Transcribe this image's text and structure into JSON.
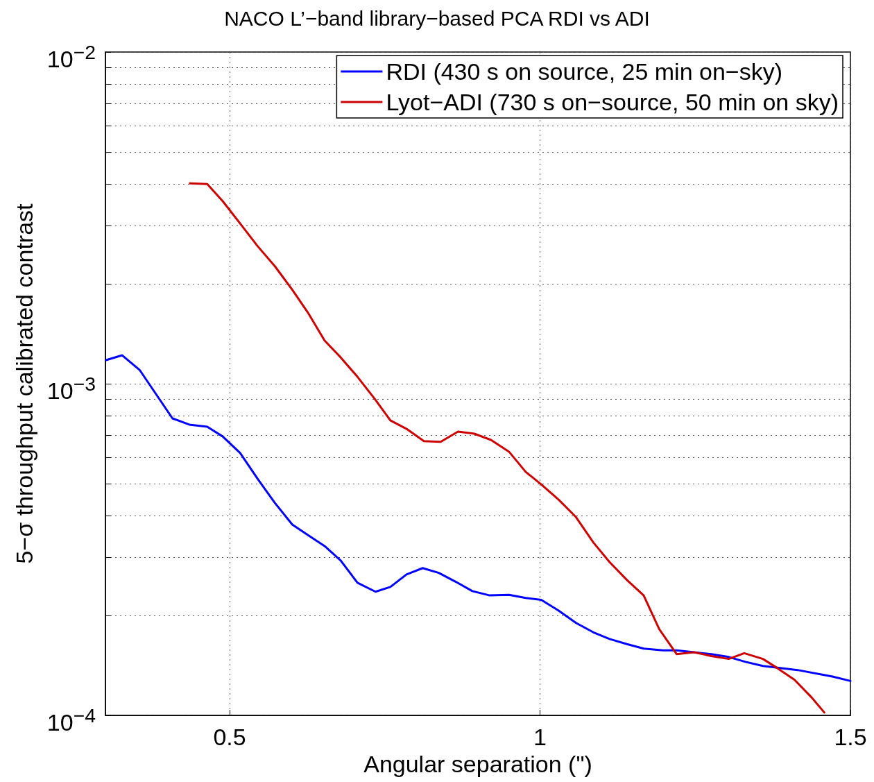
{
  "chart_data": {
    "type": "line",
    "title": "NACO L’−band library−based PCA RDI vs ADI",
    "xlabel": "Angular separation (\")",
    "ylabel": "5−σ throughput calibrated contrast",
    "log": "y",
    "grid": true,
    "legend": "top right",
    "marker": "none",
    "line_style": "solid",
    "xlim": [
      0.3,
      1.5
    ],
    "xticks": [
      0.5,
      1,
      1.5
    ],
    "ylim": [
      0.0001,
      0.01
    ],
    "yticks": [
      {
        "value": 0.0001,
        "label": "10$^{−4}$"
      },
      {
        "value": 0.0002,
        "label": null
      },
      {
        "value": 0.0003,
        "label": null
      },
      {
        "value": 0.0004,
        "label": null
      },
      {
        "value": 0.0005,
        "label": null
      },
      {
        "value": 0.0006,
        "label": null
      },
      {
        "value": 0.0007,
        "label": null
      },
      {
        "value": 0.0008,
        "label": null
      },
      {
        "value": 0.0009,
        "label": null
      },
      {
        "value": 0.001,
        "label": "10$^{−3}$"
      },
      {
        "value": 0.002,
        "label": null
      },
      {
        "value": 0.003,
        "label": null
      },
      {
        "value": 0.004,
        "label": null
      },
      {
        "value": 0.005,
        "label": null
      },
      {
        "value": 0.006,
        "label": null
      },
      {
        "value": 0.007,
        "label": null
      },
      {
        "value": 0.008,
        "label": null
      },
      {
        "value": 0.009,
        "label": null
      },
      {
        "value": 0.01,
        "label": "10$^{−2}$"
      }
    ],
    "series": [
      {
        "name": "RDI (430 s on source, 25 min on−sky)",
        "color": "#0000ff",
        "x": [
          0.301,
          0.327,
          0.355,
          0.408,
          0.435,
          0.464,
          0.489,
          0.517,
          0.545,
          0.573,
          0.601,
          0.626,
          0.653,
          0.679,
          0.706,
          0.735,
          0.759,
          0.785,
          0.811,
          0.837,
          0.864,
          0.891,
          0.919,
          0.95,
          0.977,
          1.002,
          1.03,
          1.058,
          1.086,
          1.112,
          1.14,
          1.167,
          1.198,
          1.22,
          1.248,
          1.276,
          1.304,
          1.331,
          1.359,
          1.415,
          1.471,
          1.5
        ],
        "values": [
          0.001178,
          0.001218,
          0.001101,
          0.000786,
          0.000753,
          0.000742,
          0.000693,
          0.000618,
          0.000517,
          0.000437,
          0.000376,
          0.00035,
          0.000324,
          0.000293,
          0.000251,
          0.000236,
          0.000244,
          0.000266,
          0.000278,
          0.000269,
          0.000253,
          0.000237,
          0.00023,
          0.000231,
          0.000226,
          0.000223,
          0.000207,
          0.00019,
          0.000178,
          0.00017,
          0.000164,
          0.000159,
          0.000157,
          0.000157,
          0.000155,
          0.000153,
          0.00015,
          0.000145,
          0.000141,
          0.000137,
          0.000131,
          0.000127
        ]
      },
      {
        "name": "Lyot−ADI (730 s on−source, 50 min on sky)",
        "color": "#cc0000",
        "x": [
          0.436,
          0.464,
          0.489,
          0.517,
          0.545,
          0.573,
          0.601,
          0.626,
          0.653,
          0.679,
          0.706,
          0.734,
          0.759,
          0.785,
          0.813,
          0.84,
          0.868,
          0.894,
          0.921,
          0.95,
          0.977,
          1.002,
          1.03,
          1.058,
          1.086,
          1.112,
          1.14,
          1.167,
          1.192,
          1.22,
          1.248,
          1.276,
          1.304,
          1.329,
          1.359,
          1.382,
          1.41,
          1.438,
          1.458
        ],
        "values": [
          0.00402,
          0.004,
          0.00355,
          0.00304,
          0.0026,
          0.00226,
          0.00192,
          0.00164,
          0.00135,
          0.0012,
          0.001049,
          0.000899,
          0.000775,
          0.000731,
          0.000671,
          0.000668,
          0.000717,
          0.000707,
          0.000677,
          0.000624,
          0.000542,
          0.000497,
          0.000447,
          0.000396,
          0.000332,
          0.00029,
          0.000256,
          0.00023,
          0.000182,
          0.000153,
          0.000155,
          0.000151,
          0.000148,
          0.000154,
          0.000148,
          0.000139,
          0.000128,
          0.000113,
          0.000102
        ]
      }
    ]
  }
}
